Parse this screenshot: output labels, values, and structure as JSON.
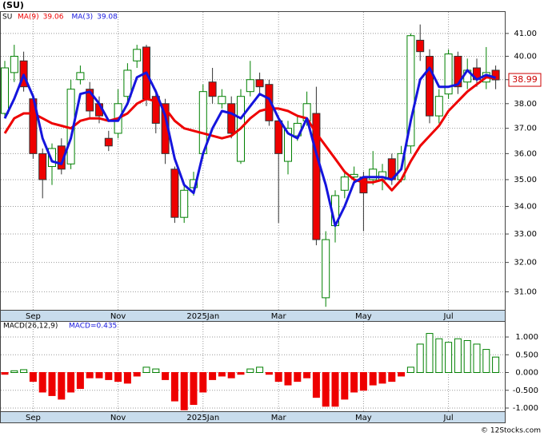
{
  "title": "(SU)",
  "symbol": "SU",
  "footer": "© 12Stocks.com",
  "chart_data": [
    {
      "type": "candlestick",
      "categories": [
        null,
        null,
        null,
        "Sep",
        null,
        null,
        null,
        null,
        null,
        null,
        null,
        null,
        "Nov",
        null,
        null,
        null,
        null,
        null,
        null,
        null,
        null,
        "2025Jan",
        null,
        null,
        null,
        null,
        null,
        null,
        null,
        "Mar",
        null,
        null,
        null,
        null,
        null,
        null,
        null,
        null,
        "May",
        null,
        null,
        null,
        null,
        null,
        null,
        null,
        null,
        "Jul",
        null,
        null,
        null,
        null,
        null
      ],
      "open": [
        37.6,
        39.3,
        39.8,
        38.2,
        36.0,
        35.5,
        36.3,
        35.6,
        39.0,
        38.6,
        38.0,
        36.6,
        36.8,
        38.3,
        39.8,
        40.4,
        38.3,
        38.0,
        35.4,
        33.6,
        34.7,
        36.0,
        38.9,
        38.0,
        38.0,
        35.7,
        38.5,
        39.0,
        38.8,
        37.3,
        35.7,
        36.7,
        37.3,
        37.6,
        30.8,
        33.3,
        34.6,
        35.1,
        35.1,
        35.0,
        35.0,
        35.8,
        35.0,
        36.3,
        40.7,
        40.0,
        37.5,
        38.4,
        40.0,
        38.9,
        39.5,
        38.9,
        39.4
      ],
      "high": [
        39.8,
        40.5,
        40.2,
        38.4,
        36.2,
        36.4,
        36.6,
        39.0,
        39.6,
        38.9,
        38.3,
        36.9,
        38.6,
        39.7,
        40.5,
        40.5,
        38.6,
        38.2,
        35.5,
        34.8,
        35.3,
        38.8,
        39.5,
        38.6,
        38.3,
        38.6,
        39.8,
        39.3,
        39.0,
        37.5,
        37.3,
        37.5,
        38.5,
        38.7,
        33.1,
        34.6,
        35.3,
        35.5,
        35.3,
        36.1,
        35.6,
        36.0,
        36.3,
        41.0,
        41.4,
        40.3,
        38.6,
        40.3,
        40.2,
        39.9,
        39.9,
        40.4,
        39.6
      ],
      "low": [
        37.4,
        38.9,
        38.5,
        35.8,
        34.3,
        34.8,
        35.2,
        35.4,
        38.8,
        37.4,
        37.2,
        36.1,
        36.6,
        38.0,
        39.5,
        37.9,
        36.8,
        35.6,
        33.4,
        33.4,
        34.4,
        35.8,
        38.0,
        37.8,
        36.6,
        35.6,
        38.3,
        38.4,
        37.1,
        33.4,
        35.2,
        36.5,
        37.1,
        32.6,
        30.5,
        32.7,
        34.3,
        34.9,
        33.1,
        34.8,
        34.6,
        34.8,
        34.9,
        36.0,
        39.8,
        37.2,
        37.2,
        38.2,
        38.4,
        38.6,
        38.7,
        38.6,
        38.6
      ],
      "close": [
        39.5,
        40.0,
        38.7,
        36.0,
        35.0,
        36.2,
        35.4,
        38.6,
        39.3,
        37.7,
        37.5,
        36.3,
        38.0,
        39.4,
        40.3,
        38.2,
        37.2,
        36.0,
        33.6,
        34.6,
        35.0,
        38.5,
        38.3,
        38.3,
        36.8,
        38.3,
        39.0,
        38.7,
        37.3,
        36.0,
        37.0,
        37.2,
        38.0,
        32.8,
        32.8,
        34.4,
        35.1,
        35.2,
        34.5,
        35.4,
        35.3,
        35.0,
        36.0,
        40.9,
        40.2,
        37.5,
        38.3,
        40.1,
        38.7,
        39.4,
        39.0,
        39.3,
        38.99
      ],
      "up_color": "#008000",
      "down_color": "#ee0000",
      "series": [
        {
          "name": "MA(9)",
          "color": "#ee0000",
          "values": [
            36.8,
            37.4,
            37.6,
            37.6,
            37.4,
            37.2,
            37.1,
            37.0,
            37.3,
            37.4,
            37.4,
            37.3,
            37.4,
            37.6,
            38.0,
            38.2,
            38.1,
            37.8,
            37.3,
            37.0,
            36.9,
            36.8,
            36.7,
            36.6,
            36.7,
            37.0,
            37.4,
            37.7,
            37.8,
            37.8,
            37.7,
            37.5,
            37.4,
            36.8,
            36.3,
            35.8,
            35.3,
            35.0,
            34.9,
            34.9,
            35.0,
            34.6,
            35.0,
            35.7,
            36.3,
            36.7,
            37.1,
            37.7,
            38.1,
            38.5,
            38.8,
            39.1,
            39.06
          ]
        },
        {
          "name": "MA(3)",
          "color": "#1515dd",
          "values": [
            37.4,
            38.2,
            39.2,
            38.3,
            36.6,
            35.7,
            35.6,
            36.6,
            38.4,
            38.5,
            38.0,
            37.3,
            37.3,
            38.0,
            39.1,
            39.3,
            38.5,
            37.5,
            35.8,
            34.8,
            34.5,
            36.0,
            37.0,
            37.7,
            37.6,
            37.4,
            37.9,
            38.4,
            38.2,
            37.4,
            36.8,
            36.6,
            37.4,
            36.0,
            34.8,
            33.3,
            34.0,
            34.9,
            35.1,
            35.1,
            35.1,
            35.0,
            35.4,
            37.3,
            39.0,
            39.5,
            38.7,
            38.7,
            38.8,
            39.4,
            39.0,
            39.2,
            39.08
          ]
        }
      ],
      "log_scale": true,
      "ylim": [
        30.4,
        42.0
      ],
      "yticks": [
        {
          "value": 31,
          "label": "31.00"
        },
        {
          "value": 32,
          "label": "32.00"
        },
        {
          "value": 33,
          "label": "33.00"
        },
        {
          "value": 34,
          "label": "34.00"
        },
        {
          "value": 35,
          "label": "35.00"
        },
        {
          "value": 36,
          "label": "36.00"
        },
        {
          "value": 37,
          "label": "37.00"
        },
        {
          "value": 38,
          "label": "38.00"
        },
        {
          "value": 39,
          "label": "39.00"
        },
        {
          "value": 40,
          "label": "40.00"
        },
        {
          "value": 41,
          "label": "41.00"
        }
      ],
      "grid": true
    },
    {
      "type": "bar",
      "title": "MACD(26,12,9)",
      "value_text": "MACD=0.435",
      "values": [
        -0.05,
        0.05,
        0.08,
        -0.25,
        -0.55,
        -0.65,
        -0.75,
        -0.55,
        -0.45,
        -0.15,
        -0.15,
        -0.2,
        -0.25,
        -0.3,
        -0.1,
        0.15,
        0.1,
        -0.2,
        -0.8,
        -1.05,
        -0.9,
        -0.55,
        -0.2,
        -0.1,
        -0.15,
        -0.05,
        0.1,
        0.15,
        -0.05,
        -0.25,
        -0.35,
        -0.25,
        -0.15,
        -0.7,
        -0.95,
        -0.95,
        -0.75,
        -0.55,
        -0.5,
        -0.35,
        -0.3,
        -0.25,
        -0.1,
        0.15,
        0.8,
        1.1,
        0.95,
        0.85,
        0.95,
        0.9,
        0.8,
        0.65,
        0.435
      ],
      "up_color": "#008000",
      "down_color": "#ee0000",
      "ylim": [
        -1.09,
        1.45
      ],
      "yticks": [
        {
          "value": -1,
          "label": "-1.000"
        },
        {
          "value": -0.5,
          "label": "-0.500"
        },
        {
          "value": 0,
          "label": "0.000"
        },
        {
          "value": 0.5,
          "label": "0.500"
        },
        {
          "value": 1,
          "label": "1.000"
        }
      ],
      "grid": true
    }
  ]
}
